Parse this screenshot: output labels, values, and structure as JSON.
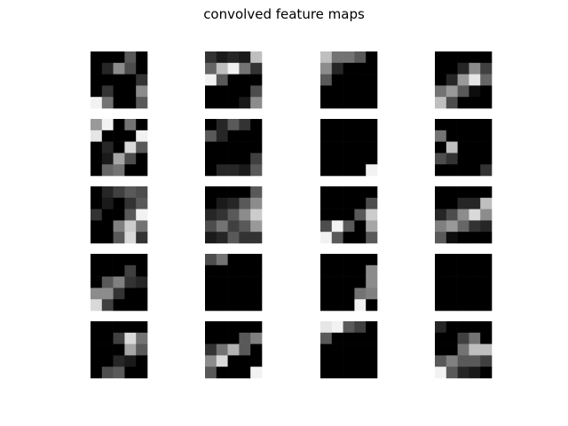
{
  "figure": {
    "title": "convolved feature maps"
  },
  "chart_data": {
    "type": "heatmap",
    "title": "convolved feature maps",
    "rows": 5,
    "cols": 4,
    "colormap": "gray",
    "value_range": [
      0,
      1
    ],
    "axes_visible": false,
    "maps": [
      [
        [
          0,
          0,
          0,
          0.35,
          0
        ],
        [
          0,
          0.15,
          0.55,
          0.3,
          0
        ],
        [
          0,
          0,
          0,
          0,
          0.2
        ],
        [
          0,
          0.2,
          0,
          0,
          0.55
        ],
        [
          0.95,
          0.45,
          0,
          0,
          0.35
        ]
      ],
      [
        [
          0.2,
          0.1,
          0.15,
          0.1,
          0.75
        ],
        [
          0.4,
          0.75,
          0.95,
          0.45,
          0.2
        ],
        [
          0.95,
          0.35,
          0,
          0,
          0
        ],
        [
          0,
          0,
          0,
          0,
          0.3
        ],
        [
          0,
          0,
          0,
          0.1,
          0.55
        ]
      ],
      [
        [
          0.75,
          0.45,
          0.45,
          0.35,
          0
        ],
        [
          0.55,
          0.15,
          0,
          0,
          0
        ],
        [
          0.35,
          0,
          0,
          0,
          0
        ],
        [
          0,
          0,
          0,
          0,
          0
        ],
        [
          0,
          0,
          0,
          0,
          0
        ]
      ],
      [
        [
          0,
          0,
          0,
          0,
          0
        ],
        [
          0,
          0,
          0.15,
          0.55,
          0.25
        ],
        [
          0,
          0.15,
          0.6,
          0.9,
          0.4
        ],
        [
          0.45,
          0.6,
          0.35,
          0.05,
          0
        ],
        [
          0.75,
          0.3,
          0,
          0,
          0
        ]
      ],
      [
        [
          0.6,
          0.95,
          0,
          0.45,
          0
        ],
        [
          0.9,
          0,
          0,
          0,
          0.95
        ],
        [
          0,
          0.15,
          0,
          0.85,
          0.35
        ],
        [
          0,
          0.1,
          0.65,
          0.3,
          0
        ],
        [
          0,
          0.4,
          0.45,
          0,
          0
        ]
      ],
      [
        [
          0,
          0.15,
          0.35,
          0.2,
          0
        ],
        [
          0.35,
          0.15,
          0,
          0,
          0
        ],
        [
          0,
          0,
          0,
          0,
          0
        ],
        [
          0,
          0,
          0,
          0,
          0.25
        ],
        [
          0,
          0.15,
          0.15,
          0.1,
          0.35
        ]
      ],
      [
        [
          0,
          0,
          0,
          0,
          0
        ],
        [
          0,
          0,
          0,
          0,
          0
        ],
        [
          0,
          0,
          0,
          0,
          0
        ],
        [
          0,
          0,
          0,
          0,
          0
        ],
        [
          0,
          0,
          0,
          0,
          0.95
        ]
      ],
      [
        [
          0,
          0,
          0,
          0,
          0
        ],
        [
          0.45,
          0,
          0,
          0,
          0
        ],
        [
          0,
          0.75,
          0,
          0,
          0
        ],
        [
          0.3,
          0.2,
          0,
          0,
          0
        ],
        [
          0,
          0,
          0,
          0,
          0.2
        ]
      ],
      [
        [
          0,
          0.15,
          0.25,
          0.35,
          0.3
        ],
        [
          0,
          0.1,
          0,
          0.2,
          0.35
        ],
        [
          0.2,
          0,
          0,
          0.35,
          0.95
        ],
        [
          0,
          0,
          0.5,
          0.8,
          0.45
        ],
        [
          0,
          0,
          0.35,
          0.85,
          0.2
        ]
      ],
      [
        [
          0,
          0,
          0,
          0,
          0.35
        ],
        [
          0,
          0.1,
          0.15,
          0.35,
          0.55
        ],
        [
          0.15,
          0.2,
          0.35,
          0.55,
          0.8
        ],
        [
          0.3,
          0.45,
          0.25,
          0.35,
          0.6
        ],
        [
          0.1,
          0.15,
          0.35,
          0.2,
          0.2
        ]
      ],
      [
        [
          0,
          0,
          0,
          0,
          0
        ],
        [
          0,
          0,
          0,
          0,
          0.3
        ],
        [
          0,
          0,
          0,
          0.35,
          0.8
        ],
        [
          0.3,
          0.95,
          0.35,
          0,
          0.65
        ],
        [
          0.95,
          0.35,
          0,
          0,
          0.35
        ]
      ],
      [
        [
          0,
          0,
          0,
          0,
          0
        ],
        [
          0,
          0,
          0.15,
          0.15,
          0.75
        ],
        [
          0.15,
          0.3,
          0.55,
          0.85,
          0.55
        ],
        [
          0.5,
          0.6,
          0.4,
          0.2,
          0.15
        ],
        [
          0.35,
          0.05,
          0,
          0,
          0
        ]
      ],
      [
        [
          0,
          0,
          0,
          0,
          0
        ],
        [
          0,
          0,
          0,
          0.25,
          0
        ],
        [
          0,
          0.35,
          0.5,
          0.2,
          0.15
        ],
        [
          0.55,
          0.55,
          0.2,
          0,
          0
        ],
        [
          0.85,
          0.25,
          0,
          0,
          0
        ]
      ],
      [
        [
          0.3,
          0.45,
          0,
          0,
          0
        ],
        [
          0,
          0,
          0,
          0,
          0
        ],
        [
          0,
          0,
          0,
          0,
          0
        ],
        [
          0,
          0,
          0,
          0,
          0
        ],
        [
          0,
          0,
          0,
          0,
          0
        ]
      ],
      [
        [
          0,
          0,
          0,
          0,
          0
        ],
        [
          0,
          0,
          0,
          0,
          0.55
        ],
        [
          0,
          0,
          0,
          0,
          0.55
        ],
        [
          0,
          0,
          0,
          0.45,
          0.5
        ],
        [
          0,
          0,
          0,
          0.95,
          0
        ]
      ],
      [
        [
          0,
          0,
          0,
          0,
          0
        ],
        [
          0,
          0,
          0,
          0,
          0
        ],
        [
          0,
          0,
          0,
          0,
          0
        ],
        [
          0,
          0,
          0,
          0,
          0
        ],
        [
          0,
          0,
          0,
          0,
          0
        ]
      ],
      [
        [
          0,
          0,
          0,
          0,
          0
        ],
        [
          0,
          0,
          0.25,
          0.85,
          0.45
        ],
        [
          0,
          0,
          0,
          0.65,
          0.35
        ],
        [
          0,
          0,
          0.15,
          0.1,
          0
        ],
        [
          0,
          0.3,
          0.35,
          0,
          0
        ]
      ],
      [
        [
          0,
          0,
          0,
          0,
          0
        ],
        [
          0,
          0,
          0,
          0.35,
          0.5
        ],
        [
          0.2,
          0.45,
          0.7,
          0.35,
          0
        ],
        [
          0.55,
          0.85,
          0,
          0,
          0
        ],
        [
          0.35,
          0,
          0,
          0,
          0.95
        ]
      ],
      [
        [
          0.9,
          0.95,
          0.35,
          0.25,
          0
        ],
        [
          0.35,
          0,
          0,
          0,
          0
        ],
        [
          0,
          0,
          0,
          0,
          0
        ],
        [
          0,
          0,
          0,
          0,
          0
        ],
        [
          0,
          0,
          0,
          0,
          0
        ]
      ],
      [
        [
          0.15,
          0,
          0,
          0,
          0
        ],
        [
          0,
          0,
          0.25,
          0.45,
          0
        ],
        [
          0,
          0,
          0.45,
          0.75,
          0.75
        ],
        [
          0.35,
          0.5,
          0.35,
          0.35,
          0.25
        ],
        [
          0.95,
          0.35,
          0.15,
          0.1,
          0
        ]
      ]
    ]
  }
}
